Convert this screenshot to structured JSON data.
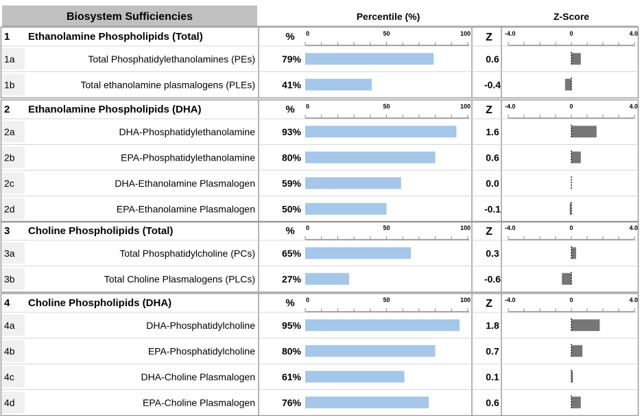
{
  "header": {
    "title": "Biosystem Sufficiencies",
    "percentile_title": "Percentile (%)",
    "zscore_title": "Z-Score"
  },
  "column_labels": {
    "percent": "%",
    "z": "Z"
  },
  "axis_ticks": {
    "percentile": [
      "0",
      "50",
      "100"
    ],
    "zscore": [
      "-4.0",
      "0",
      "4.0"
    ]
  },
  "colors": {
    "percentile_bar": "#a4c7ea",
    "zscore_bar": "#767676",
    "header_bg": "#c0c0c0",
    "id_bg": "#f0f0f0",
    "border": "#9a9a9a"
  },
  "chart_data": {
    "type": "bar",
    "percentile_range": [
      0,
      100
    ],
    "zscore_range": [
      -4,
      4
    ],
    "sections": [
      {
        "id": "1",
        "title": "Ethanolamine Phospholipids (Total)",
        "rows": [
          {
            "id": "1a",
            "label": "Total Phosphatidylethanolamines (PEs)",
            "percent": 79,
            "percent_label": "79%",
            "z": 0.6,
            "z_label": "0.6"
          },
          {
            "id": "1b",
            "label": "Total ethanolamine plasmalogens (PLEs)",
            "percent": 41,
            "percent_label": "41%",
            "z": -0.4,
            "z_label": "-0.4"
          }
        ]
      },
      {
        "id": "2",
        "title": "Ethanolamine Phospholipids (DHA)",
        "rows": [
          {
            "id": "2a",
            "label": "DHA-Phosphatidylethanolamine",
            "percent": 93,
            "percent_label": "93%",
            "z": 1.6,
            "z_label": "1.6"
          },
          {
            "id": "2b",
            "label": "EPA-Phosphatidylethanolamine",
            "percent": 80,
            "percent_label": "80%",
            "z": 0.6,
            "z_label": "0.6"
          },
          {
            "id": "2c",
            "label": "DHA-Ethanolamine Plasmalogen",
            "percent": 59,
            "percent_label": "59%",
            "z": 0.0,
            "z_label": "0.0"
          },
          {
            "id": "2d",
            "label": "EPA-Ethanolamine Plasmalogen",
            "percent": 50,
            "percent_label": "50%",
            "z": -0.1,
            "z_label": "-0.1"
          }
        ]
      },
      {
        "id": "3",
        "title": "Choline Phospholipids (Total)",
        "rows": [
          {
            "id": "3a",
            "label": "Total Phosphatidylcholine (PCs)",
            "percent": 65,
            "percent_label": "65%",
            "z": 0.3,
            "z_label": "0.3"
          },
          {
            "id": "3b",
            "label": "Total Choline Plasmalogens (PLCs)",
            "percent": 27,
            "percent_label": "27%",
            "z": -0.6,
            "z_label": "-0.6"
          }
        ]
      },
      {
        "id": "4",
        "title": "Choline Phospholipids (DHA)",
        "rows": [
          {
            "id": "4a",
            "label": "DHA-Phosphatidylcholine",
            "percent": 95,
            "percent_label": "95%",
            "z": 1.8,
            "z_label": "1.8"
          },
          {
            "id": "4b",
            "label": "EPA-Phosphatidylcholine",
            "percent": 80,
            "percent_label": "80%",
            "z": 0.7,
            "z_label": "0.7"
          },
          {
            "id": "4c",
            "label": "DHA-Choline Plasmalogen",
            "percent": 61,
            "percent_label": "61%",
            "z": 0.1,
            "z_label": "0.1"
          },
          {
            "id": "4d",
            "label": "EPA-Choline Plasmalogen",
            "percent": 76,
            "percent_label": "76%",
            "z": 0.6,
            "z_label": "0.6"
          }
        ]
      }
    ]
  }
}
